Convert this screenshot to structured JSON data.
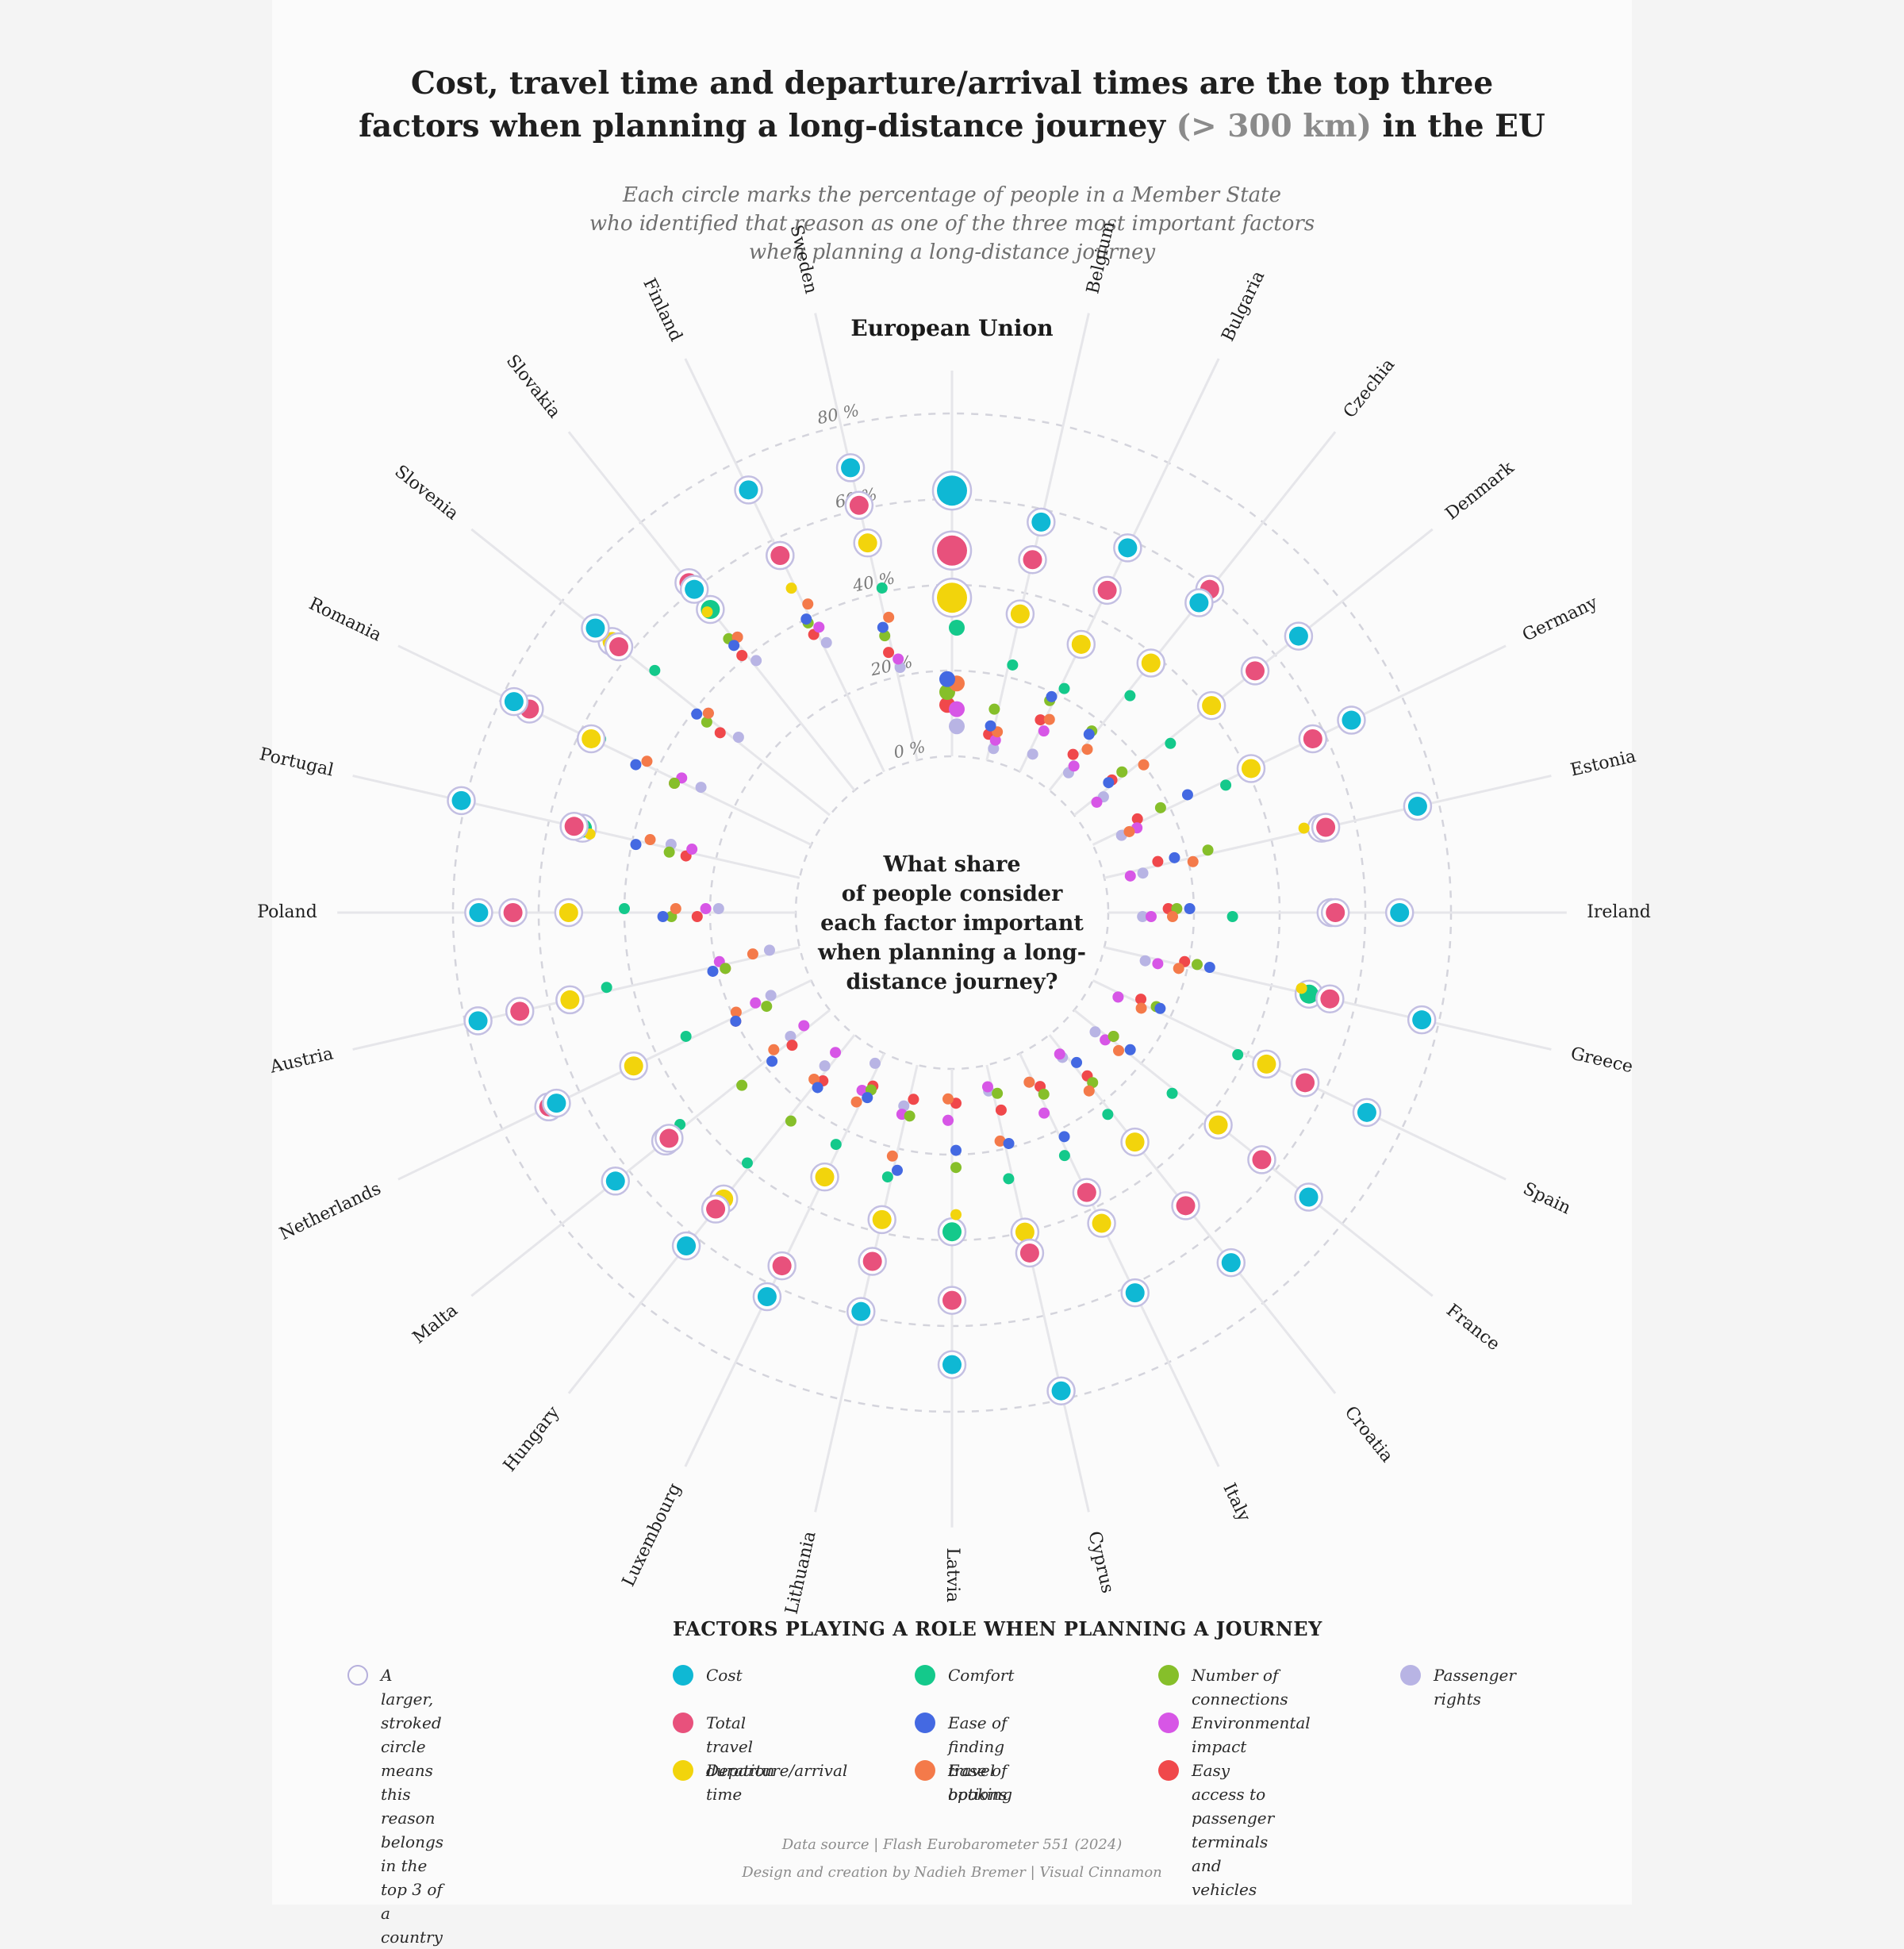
{
  "title": {
    "line1": "Cost, travel time and departure/arrival times are the top three",
    "line2_before": "factors when planning a long-distance journey ",
    "line2_highlight": "(> 300 km)",
    "line2_after": " in the EU"
  },
  "subtitle": [
    "Each circle marks the percentage of people in a Member State",
    "who identified that reason as one of the three most important factors",
    "when planning a long-distance journey"
  ],
  "center_question": [
    "What share",
    "of people consider",
    "each factor important",
    "when planning a long-",
    "distance journey?"
  ],
  "legend": {
    "title": "FACTORS PLAYING A ROLE WHEN PLANNING A JOURNEY",
    "note": "A larger, stroked circle means\nthis reason belongs in the\ntop 3 of a country",
    "items": [
      {
        "label": "Cost",
        "color": "#0fb8d4"
      },
      {
        "label": "Total travel duration",
        "color": "#e8517c"
      },
      {
        "label": "Departure/arrival time",
        "color": "#f2d40c"
      },
      {
        "label": "Comfort",
        "color": "#14c98b"
      },
      {
        "label": "Ease of finding\ntravel options",
        "color": "#4469e2"
      },
      {
        "label": "Ease of booking",
        "color": "#f47a4a"
      },
      {
        "label": "Number of connections",
        "color": "#86bf2a"
      },
      {
        "label": "Environmental impact",
        "color": "#d756e6"
      },
      {
        "label": "Easy access to passenger\nterminals and vehicles",
        "color": "#f0484b"
      },
      {
        "label": "Passenger rights",
        "color": "#b8b4e4"
      }
    ]
  },
  "credits": {
    "source": "Data source | Flash Eurobarometer 551 (2024)",
    "design": "Design and creation by Nadieh Bremer | Visual Cinnamon"
  },
  "chart_data": {
    "type": "radial-dot",
    "axis_ticks": [
      "0 %",
      "20 %",
      "40 %",
      "60 %",
      "80 %"
    ],
    "tick_values": [
      0,
      20,
      40,
      60,
      80
    ],
    "factors": [
      "Cost",
      "Total travel duration",
      "Departure/arrival time",
      "Comfort",
      "Ease of finding travel options",
      "Ease of booking",
      "Number of connections",
      "Environmental impact",
      "Easy access to passenger terminals and vehicles",
      "Passenger rights"
    ],
    "countries": [
      {
        "name": "European Union",
        "values": [
          62,
          48,
          37,
          30,
          18,
          17,
          15,
          11,
          12,
          7
        ],
        "top3": [
          0,
          1,
          2
        ]
      },
      {
        "name": "Belgium",
        "values": [
          57,
          48,
          35,
          23,
          8,
          7,
          12,
          5,
          6,
          3
        ],
        "top3": [
          0,
          1,
          2
        ]
      },
      {
        "name": "Bulgaria",
        "values": [
          58,
          47,
          33,
          22,
          19,
          14,
          18,
          11,
          13,
          5
        ],
        "top3": [
          0,
          1,
          2
        ]
      },
      {
        "name": "Czechia",
        "values": [
          56,
          60,
          38,
          29,
          16,
          13,
          17,
          8,
          10,
          6
        ],
        "top3": [
          0,
          1,
          2
        ]
      },
      {
        "name": "Denmark",
        "values": [
          67,
          54,
          41,
          28,
          11,
          20,
          15,
          6,
          12,
          8
        ],
        "top3": [
          0,
          1,
          2
        ]
      },
      {
        "name": "Germany",
        "values": [
          67,
          57,
          41,
          34,
          25,
          9,
          18,
          11,
          12,
          7
        ],
        "top3": [
          0,
          1,
          2
        ]
      },
      {
        "name": "Estonia",
        "values": [
          75,
          53,
          48,
          52,
          17,
          21,
          25,
          6,
          13,
          9
        ],
        "top3": [
          0,
          1,
          3
        ]
      },
      {
        "name": "Ireland",
        "values": [
          68,
          53,
          52,
          29,
          19,
          15,
          16,
          10,
          14,
          8
        ],
        "top3": [
          0,
          1,
          2
        ]
      },
      {
        "name": "Greece",
        "values": [
          76,
          54,
          47,
          49,
          25,
          18,
          22,
          13,
          19,
          10
        ],
        "top3": [
          0,
          1,
          3
        ]
      },
      {
        "name": "Spain",
        "values": [
          71,
          55,
          45,
          38,
          17,
          13,
          16,
          7,
          12,
          7
        ],
        "top3": [
          0,
          1,
          2
        ]
      },
      {
        "name": "France",
        "values": [
          70,
          56,
          43,
          30,
          16,
          14,
          11,
          10,
          11,
          7
        ],
        "top3": [
          0,
          1,
          2
        ]
      },
      {
        "name": "Croatia",
        "values": [
          68,
          51,
          32,
          23,
          9,
          16,
          15,
          5,
          13,
          6
        ],
        "top3": [
          0,
          1,
          2
        ]
      },
      {
        "name": "Italy",
        "values": [
          62,
          36,
          44,
          26,
          22,
          7,
          11,
          15,
          9,
          7
        ],
        "top3": [
          0,
          1,
          2
        ]
      },
      {
        "name": "Cyprus",
        "values": [
          78,
          45,
          40,
          27,
          19,
          18,
          7,
          5,
          11,
          6
        ],
        "top3": [
          0,
          1,
          2
        ]
      },
      {
        "name": "Latvia",
        "values": [
          69,
          54,
          34,
          38,
          19,
          7,
          23,
          12,
          8,
          12
        ],
        "top3": [
          0,
          1,
          3
        ]
      },
      {
        "name": "Lithuania",
        "values": [
          59,
          47,
          37,
          27,
          25,
          22,
          12,
          12,
          8,
          10
        ],
        "top3": [
          0,
          1,
          2
        ]
      },
      {
        "name": "Luxembourg",
        "values": [
          63,
          55,
          32,
          24,
          11,
          13,
          9,
          10,
          8,
          3
        ],
        "top3": [
          0,
          1,
          2
        ]
      },
      {
        "name": "Hungary",
        "values": [
          63,
          52,
          49,
          39,
          15,
          14,
          25,
          6,
          13,
          10
        ],
        "top3": [
          0,
          1,
          2
        ]
      },
      {
        "name": "Malta",
        "values": [
          64,
          48,
          49,
          44,
          18,
          16,
          27,
          7,
          12,
          11
        ],
        "top3": [
          0,
          1,
          2
        ]
      },
      {
        "name": "Netherlands",
        "values": [
          66,
          68,
          46,
          32,
          20,
          19,
          12,
          14,
          20,
          10
        ],
        "top3": [
          0,
          1,
          2
        ]
      },
      {
        "name": "Austria",
        "values": [
          77,
          67,
          55,
          46,
          21,
          11,
          18,
          19,
          18,
          7
        ],
        "top3": [
          0,
          1,
          2
        ]
      },
      {
        "name": "Poland",
        "values": [
          74,
          66,
          53,
          40,
          31,
          28,
          29,
          21,
          23,
          18
        ],
        "top3": [
          0,
          1,
          2
        ]
      },
      {
        "name": "Portugal",
        "values": [
          81,
          54,
          50,
          52,
          39,
          36,
          31,
          26,
          27,
          31
        ],
        "top3": [
          0,
          1,
          3
        ]
      },
      {
        "name": "Romania",
        "values": [
          77,
          73,
          57,
          55,
          45,
          43,
          35,
          34,
          35,
          29
        ],
        "top3": [
          0,
          1,
          2
        ]
      },
      {
        "name": "Slovenia",
        "values": [
          70,
          63,
          65,
          53,
          39,
          37,
          36,
          37,
          32,
          28
        ],
        "top3": [
          0,
          1,
          2
        ]
      },
      {
        "name": "Slovakia",
        "values": [
          60,
          62,
          54,
          54,
          44,
          45,
          46,
          45,
          41,
          38
        ],
        "top3": [
          0,
          1,
          3
        ]
      },
      {
        "name": "Finland",
        "values": [
          73,
          56,
          48,
          56,
          40,
          43,
          39,
          37,
          36,
          33
        ],
        "top3": [
          0,
          1,
          3
        ]
      },
      {
        "name": "Sweden",
        "values": [
          70,
          61,
          52,
          41,
          32,
          34,
          30,
          24,
          26,
          22
        ],
        "top3": [
          0,
          1,
          2
        ]
      }
    ]
  }
}
